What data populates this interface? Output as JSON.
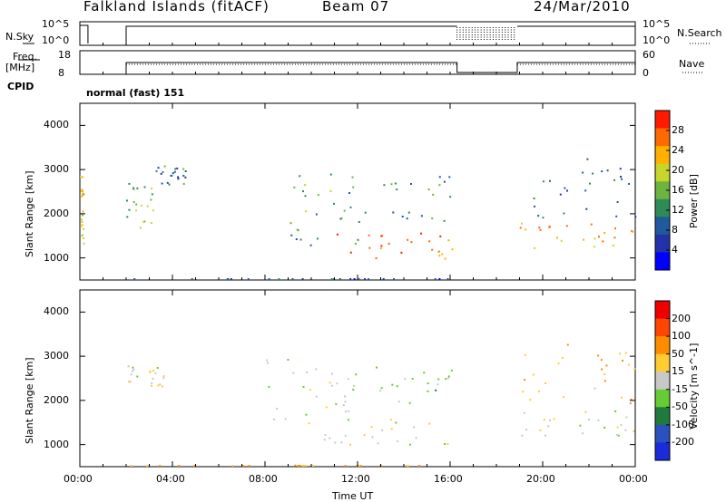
{
  "header": {
    "station": "Falkland Islands (fitACF)",
    "beam": "Beam 07",
    "date": "24/Mar/2010"
  },
  "top_panels": {
    "nsky": {
      "label": "N.Sky",
      "right_label": "N.Search",
      "left_ticks": [
        "10^5",
        "10^0"
      ],
      "right_ticks": [
        "10^5",
        "10^0"
      ]
    },
    "freq": {
      "label_line1": "Freq.",
      "label_line2": "[MHz]",
      "right_label": "Nave",
      "left_ticks": [
        "18",
        "8"
      ],
      "right_ticks": [
        "60",
        "0"
      ]
    },
    "cpid": {
      "label": "CPID",
      "value": "normal (fast) 151"
    }
  },
  "colors": {
    "power_scale": [
      "#0000ff",
      "#2233aa",
      "#1f5a9c",
      "#2e8b57",
      "#6db33f",
      "#c8d62b",
      "#ffb000",
      "#ff6a00",
      "#ff1a00"
    ],
    "velocity_scale": [
      "#1a2bd9",
      "#2a52be",
      "#1f7a3c",
      "#66cc33",
      "#c8c8c8",
      "#ffcc33",
      "#ff8c00",
      "#ff4500",
      "#ee0000"
    ],
    "ground_scatter": "#c8c8c8"
  },
  "chart_data": [
    {
      "type": "heatmap",
      "name": "power",
      "ylabel": "Slant Range [km]",
      "yticks": [
        "1000",
        "2000",
        "3000",
        "4000"
      ],
      "ylim": [
        500,
        4500
      ],
      "colorbar": {
        "label": "Power [dB]",
        "ticks": [
          "4",
          "8",
          "12",
          "16",
          "20",
          "24",
          "28"
        ],
        "range": [
          0,
          32
        ]
      },
      "regions": [
        {
          "t": [
            0.0,
            0.15
          ],
          "r": [
            1250,
            3000
          ],
          "v": 20
        },
        {
          "t": [
            2.0,
            3.2
          ],
          "r": [
            1700,
            2700
          ],
          "v": 16
        },
        {
          "t": [
            3.2,
            4.6
          ],
          "r": [
            2600,
            3100
          ],
          "v": 10
        },
        {
          "t": [
            9.0,
            12.0
          ],
          "r": [
            1300,
            3000
          ],
          "v": 14
        },
        {
          "t": [
            10.5,
            16.2
          ],
          "r": [
            1000,
            1600
          ],
          "v": 26
        },
        {
          "t": [
            11.0,
            16.2
          ],
          "r": [
            1800,
            2900
          ],
          "v": 12
        },
        {
          "t": [
            19.0,
            24.0
          ],
          "r": [
            1200,
            1800
          ],
          "v": 24
        },
        {
          "t": [
            19.0,
            24.0
          ],
          "r": [
            1900,
            3300
          ],
          "v": 10
        },
        {
          "t": [
            2.0,
            16.2
          ],
          "r": [
            300,
            550
          ],
          "v": 8
        }
      ]
    },
    {
      "type": "heatmap",
      "name": "velocity",
      "ylabel": "Slant Range [km]",
      "yticks": [
        "1000",
        "2000",
        "3000",
        "4000"
      ],
      "ylim": [
        500,
        4500
      ],
      "colorbar": {
        "label": "Velocity [m s^-1]",
        "ticks": [
          "200",
          "100",
          "50",
          "15",
          "-15",
          "-50",
          "-100",
          "-200"
        ],
        "range": [
          -250,
          250
        ]
      },
      "regions": [
        {
          "t": [
            2.0,
            3.6
          ],
          "r": [
            2300,
            2800
          ],
          "v": 0
        },
        {
          "t": [
            8.0,
            12.0
          ],
          "r": [
            1500,
            3000
          ],
          "v": 0
        },
        {
          "t": [
            10.5,
            16.2
          ],
          "r": [
            1000,
            1600
          ],
          "v": 0
        },
        {
          "t": [
            11.0,
            16.2
          ],
          "r": [
            1900,
            2800
          ],
          "v": 30
        },
        {
          "t": [
            19.0,
            24.0
          ],
          "r": [
            1200,
            1800
          ],
          "v": 0
        },
        {
          "t": [
            19.0,
            24.0
          ],
          "r": [
            1900,
            3300
          ],
          "v": -40
        },
        {
          "t": [
            2.0,
            16.2
          ],
          "r": [
            300,
            550
          ],
          "v": -60
        }
      ]
    }
  ],
  "xaxis": {
    "label": "Time UT",
    "ticks": [
      "00:00",
      "04:00",
      "08:00",
      "12:00",
      "16:00",
      "20:00",
      "00:00"
    ],
    "range_hours": [
      0,
      24
    ],
    "data_gap_hours": [
      16.3,
      18.9
    ]
  }
}
